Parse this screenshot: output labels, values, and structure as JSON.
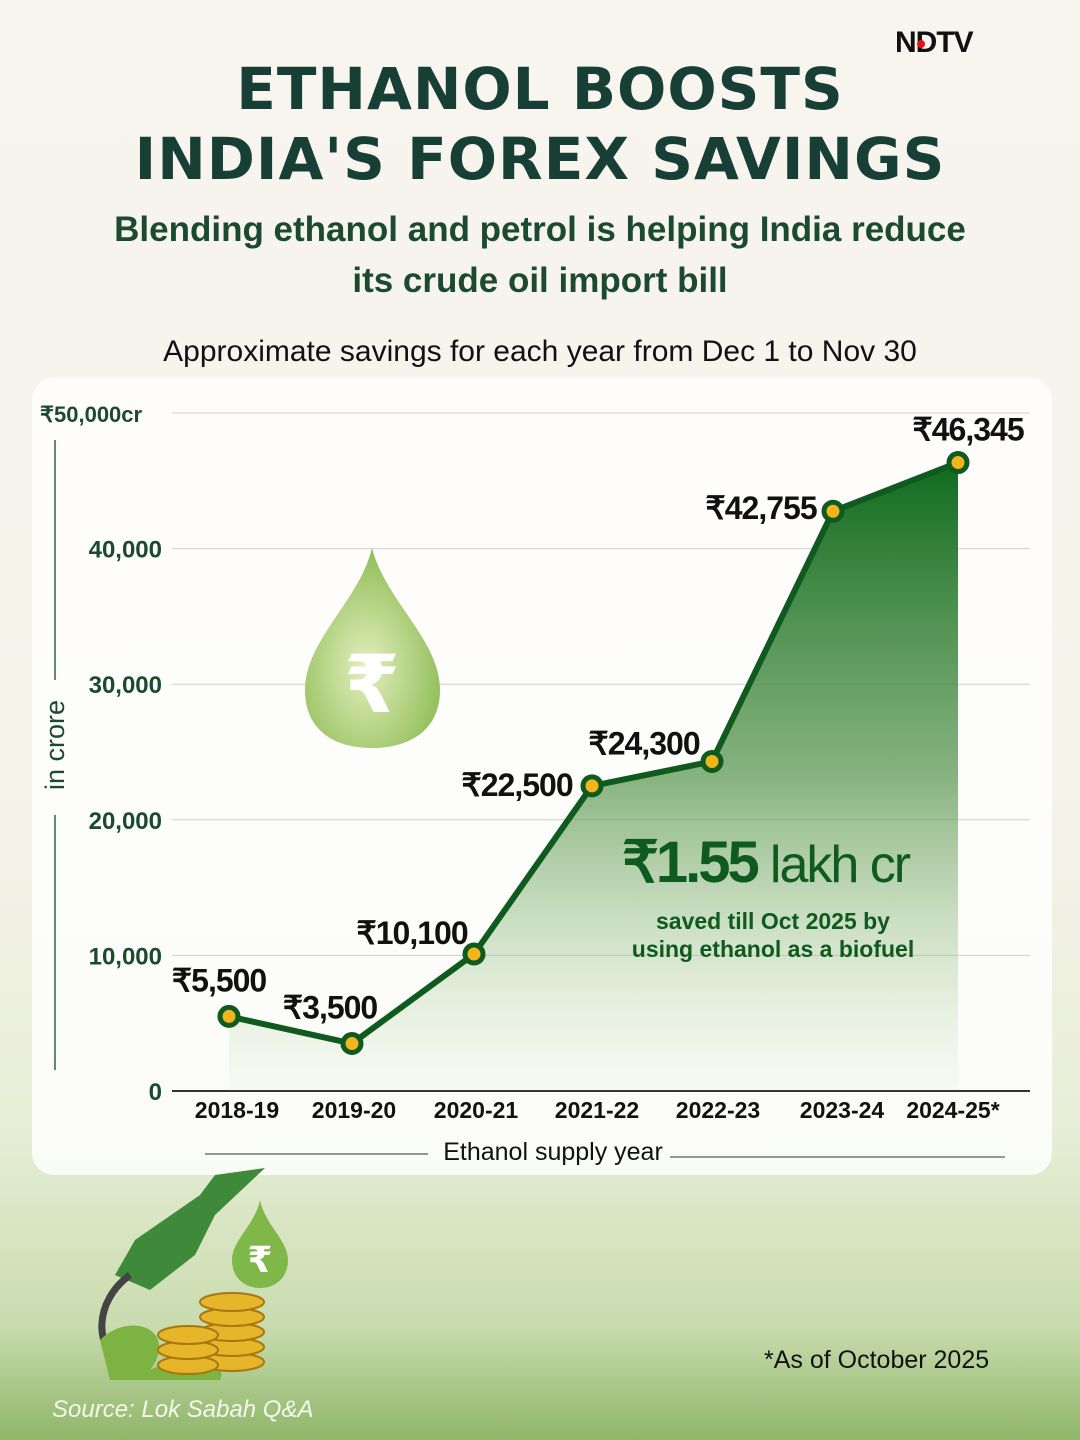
{
  "brand": "NDTV",
  "title_line1": "ETHANOL BOOSTS",
  "title_line2": "INDIA'S FOREX SAVINGS",
  "subtitle_line1": "Blending ethanol and petrol is helping India reduce",
  "subtitle_line2": "its crude oil import bill",
  "chart_note": "Approximate savings for each year from Dec 1 to Nov 30",
  "highlight": {
    "value": "₹1.55",
    "unit": "lakh cr",
    "line1": "saved till Oct 2025 by",
    "line2": "using ethanol as a biofuel"
  },
  "footnote": "*As of October 2025",
  "source": "Source: Lok Sabah Q&A",
  "colors": {
    "line": "#0f5a1e",
    "marker_fill": "#f2b51c",
    "title": "#173f35"
  },
  "chart_data": {
    "type": "area",
    "xlabel": "Ethanol supply year",
    "ylabel": "in crore",
    "ylim": [
      0,
      50000
    ],
    "yticks": [
      "0",
      "10,000",
      "20,000",
      "30,000",
      "40,000",
      "₹50,000cr"
    ],
    "ytick_values": [
      0,
      10000,
      20000,
      30000,
      40000,
      50000
    ],
    "grid": true,
    "categories": [
      "2018-19",
      "2019-20",
      "2020-21",
      "2021-22",
      "2022-23",
      "2023-24",
      "2024-25*"
    ],
    "values": [
      5500,
      3500,
      10100,
      22500,
      24300,
      42755,
      46345
    ],
    "data_labels": [
      "₹5,500",
      "₹3,500",
      "₹10,100",
      "₹22,500",
      "₹24,300",
      "₹42,755",
      "₹46,345"
    ]
  }
}
